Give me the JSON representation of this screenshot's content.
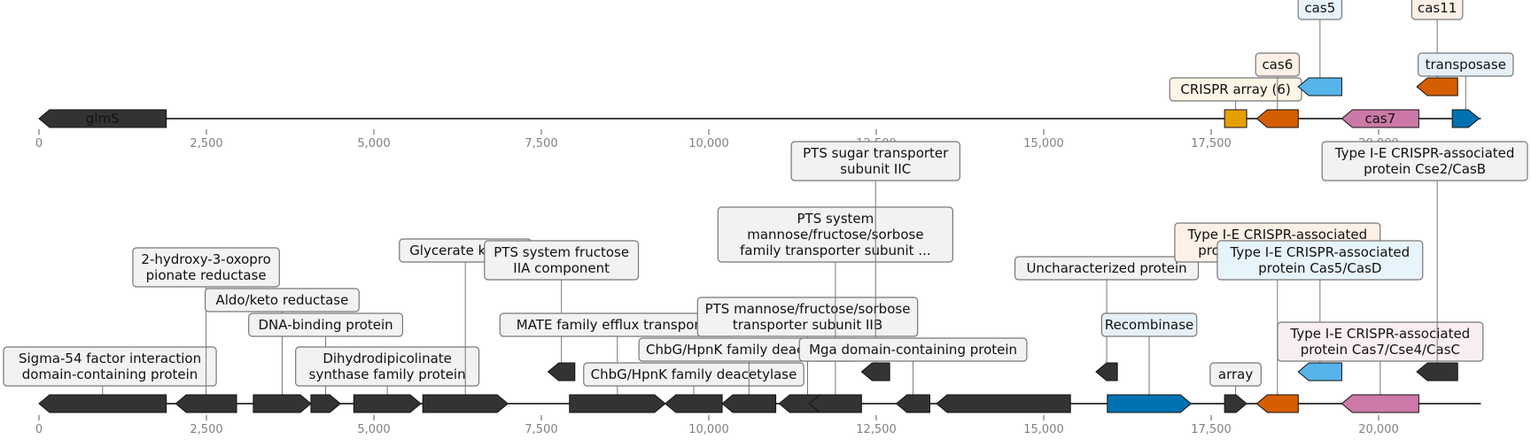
{
  "axis_ticks": [
    "0",
    "2,500",
    "5,000",
    "7,500",
    "10,000",
    "12,500",
    "15,000",
    "17,500",
    "20,000"
  ],
  "tick_values": [
    0,
    2500,
    5000,
    7500,
    10000,
    12500,
    15000,
    17500,
    20000
  ],
  "colors": {
    "grey": "#333333",
    "cas_orange": "#d55e00",
    "cas_blue": "#56b4e9",
    "cas_pink": "#cc79a7",
    "crispr_yellow": "#e69f00",
    "transposase_blue": "#0072b2",
    "box_neutral": "#f2f2f2",
    "box_orange_tint": "#fdf0e6",
    "box_blue_tint": "#e8f4fb",
    "box_yellow_tint": "#fdf5e6",
    "box_pink_tint": "#f9eef4",
    "box_transposase_tint": "#e6f1f7"
  },
  "tracks": [
    {
      "name": "top",
      "genes": [
        {
          "start": 0,
          "end": 1900,
          "strand": -1,
          "color": "#333333",
          "inner_label": "glmS"
        },
        {
          "start": 17700,
          "end": 18030,
          "strand": 0,
          "color": "#e69f00",
          "label": "CRISPR array (6)",
          "box": "#fdf5e6",
          "tier": 1
        },
        {
          "start": 18180,
          "end": 18800,
          "strand": -1,
          "color": "#d55e00",
          "label": "cas6",
          "box": "#fdf0e6",
          "tier": 2
        },
        {
          "start": 18800,
          "end": 19450,
          "strand": -1,
          "color": "#56b4e9",
          "label": "cas5",
          "box": "#e8f4fb",
          "tier": 3,
          "lift": 1
        },
        {
          "start": 19450,
          "end": 20600,
          "strand": -1,
          "color": "#cc79a7",
          "inner_label": "cas7"
        },
        {
          "start": 20570,
          "end": 21180,
          "strand": -1,
          "color": "#d55e00",
          "label": "cas11",
          "box": "#fdf0e6",
          "tier": 3,
          "lift": 1
        },
        {
          "start": 21100,
          "end": 21500,
          "strand": 1,
          "color": "#0072b2",
          "label": "transposase",
          "box": "#e6f1f7",
          "tier": 2
        }
      ]
    },
    {
      "name": "bottom",
      "genes": [
        {
          "start": 0,
          "end": 1900,
          "strand": -1,
          "color": "#333333",
          "label": "Sigma-54 factor interaction\ndomain-containing protein",
          "box": "#f2f2f2",
          "tier": 1
        },
        {
          "start": 2040,
          "end": 2950,
          "strand": -1,
          "color": "#333333",
          "label": "2-hydroxy-3-oxopro\npionate reductase",
          "box": "#f2f2f2",
          "tier": 5
        },
        {
          "start": 3200,
          "end": 4060,
          "strand": 1,
          "color": "#333333",
          "label": "Aldo/keto reductase",
          "box": "#f2f2f2",
          "tier": 4
        },
        {
          "start": 4060,
          "end": 4500,
          "strand": 1,
          "color": "#333333",
          "label": "DNA-binding protein",
          "box": "#f2f2f2",
          "tier": 3
        },
        {
          "start": 4700,
          "end": 5700,
          "strand": 1,
          "color": "#333333",
          "label": "Dihydrodipicolinate\nsynthase family protein",
          "box": "#f2f2f2",
          "tier": 1
        },
        {
          "start": 5730,
          "end": 7000,
          "strand": 1,
          "color": "#333333",
          "label": "Glycerate kinase",
          "box": "#f2f2f2",
          "tier": 6
        },
        {
          "start": 7600,
          "end": 8000,
          "strand": -1,
          "color": "#333333",
          "label": "PTS system fructose\nIIA component",
          "box": "#f2f2f2",
          "tier": 4,
          "lift": 1
        },
        {
          "start": 7920,
          "end": 9350,
          "strand": 1,
          "color": "#333333",
          "label": "MATE family efflux transporter",
          "box": "#f2f2f2",
          "tier": 3
        },
        {
          "start": 9350,
          "end": 10200,
          "strand": -1,
          "color": "#333333",
          "label": "ChbG/HpnK family deacetylase",
          "box": "#f2f2f2",
          "tier": 1
        },
        {
          "start": 10200,
          "end": 11000,
          "strand": -1,
          "color": "#333333",
          "label": "ChbG/HpnK family deacetylase",
          "box": "#f2f2f2",
          "tier": 2
        },
        {
          "start": 11050,
          "end": 11900,
          "strand": -1,
          "color": "#333333",
          "label": "PTS mannose/fructose/sorbose\ntransporter subunit IIB",
          "box": "#f2f2f2",
          "tier": 3
        },
        {
          "start": 11500,
          "end": 12280,
          "strand": -1,
          "color": "#333333",
          "label": "PTS system\nmannose/fructose/sorbose\nfamily transporter subunit ...",
          "box": "#f2f2f2",
          "tier": 6
        },
        {
          "start": 12280,
          "end": 12700,
          "strand": -1,
          "color": "#333333",
          "label": "PTS sugar transporter\nsubunit IIC",
          "box": "#f2f2f2",
          "tier": 8,
          "lift": 1
        },
        {
          "start": 12800,
          "end": 13300,
          "strand": -1,
          "color": "#333333",
          "label": "Mga domain-containing protein",
          "box": "#f2f2f2",
          "tier": 2
        },
        {
          "start": 13400,
          "end": 15400,
          "strand": -1,
          "color": "#333333"
        },
        {
          "start": 15780,
          "end": 16100,
          "strand": -1,
          "color": "#333333",
          "label": "Uncharacterized protein",
          "box": "#f2f2f2",
          "tier": 4,
          "lift": 1
        },
        {
          "start": 15950,
          "end": 17200,
          "strand": 1,
          "color": "#0072b2",
          "label": "Recombinase",
          "box": "#e6f1f7",
          "tier": 3
        },
        {
          "start": 17700,
          "end": 18030,
          "strand": 1,
          "color": "#333333",
          "label": "array",
          "box": "#f2f2f2",
          "tier": 1
        },
        {
          "start": 18180,
          "end": 18800,
          "strand": -1,
          "color": "#d55e00",
          "label": "Type I-E CRISPR-associated\nprotein Cas6/Cse3/CasE",
          "box": "#fdf0e6",
          "tier": 6
        },
        {
          "start": 18800,
          "end": 19450,
          "strand": -1,
          "color": "#56b4e9",
          "label": "Type I-E CRISPR-associated\nprotein Cas5/CasD",
          "box": "#e8f4fb",
          "tier": 4,
          "lift": 1
        },
        {
          "start": 19450,
          "end": 20600,
          "strand": -1,
          "color": "#cc79a7",
          "label": "Type I-E CRISPR-associated\nprotein Cas7/Cse4/CasC",
          "box": "#f9eef4",
          "tier": 2
        },
        {
          "start": 20570,
          "end": 21180,
          "strand": -1,
          "color": "#333333",
          "label": "Type I-E CRISPR-associated\nprotein Cse2/CasB",
          "box": "#f2f2f2",
          "tier": 8,
          "lift": 1
        }
      ]
    }
  ]
}
